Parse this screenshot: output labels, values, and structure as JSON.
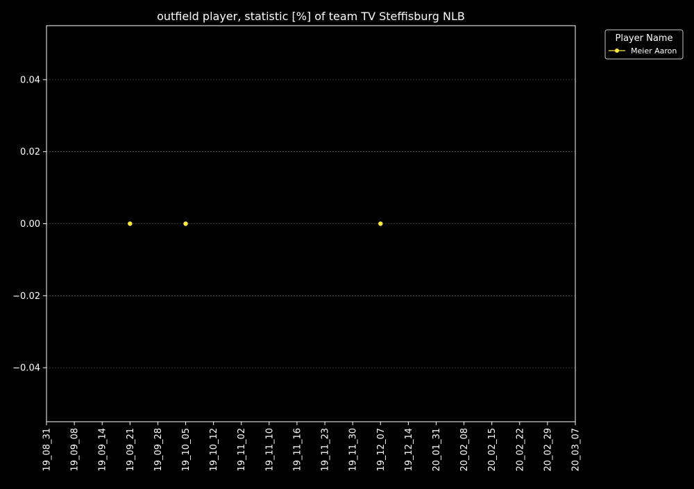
{
  "chart_data": {
    "type": "scatter",
    "title": "outfield player, statistic [%] of team TV Steffisburg NLB",
    "xlabel": "",
    "ylabel": "",
    "x_ticks": [
      "19_08_31",
      "19_09_08",
      "19_09_14",
      "19_09_21",
      "19_09_28",
      "19_10_05",
      "19_10_12",
      "19_11_02",
      "19_11_10",
      "19_11_16",
      "19_11_23",
      "19_11_30",
      "19_12_07",
      "19_12_14",
      "20_01_31",
      "20_02_08",
      "20_02_15",
      "20_02_22",
      "20_02_29",
      "20_03_07"
    ],
    "y_ticks": [
      -0.04,
      -0.02,
      0.0,
      0.02,
      0.04
    ],
    "y_tick_labels": [
      "−0.04",
      "−0.02",
      "0.00",
      "0.02",
      "0.04"
    ],
    "ylim": [
      -0.055,
      0.055
    ],
    "grid": true,
    "legend": {
      "title": "Player Name",
      "placement": "outside-top-right"
    },
    "series": [
      {
        "name": "Meier Aaron",
        "color": "#ffeb3b",
        "marker": "circle",
        "points": [
          {
            "x": "19_09_21",
            "y": 0.0
          },
          {
            "x": "19_10_05",
            "y": 0.0
          },
          {
            "x": "19_12_07",
            "y": 0.0
          }
        ]
      }
    ]
  },
  "colors": {
    "background": "#000000",
    "foreground": "#ffffff",
    "grid": "#666666"
  }
}
